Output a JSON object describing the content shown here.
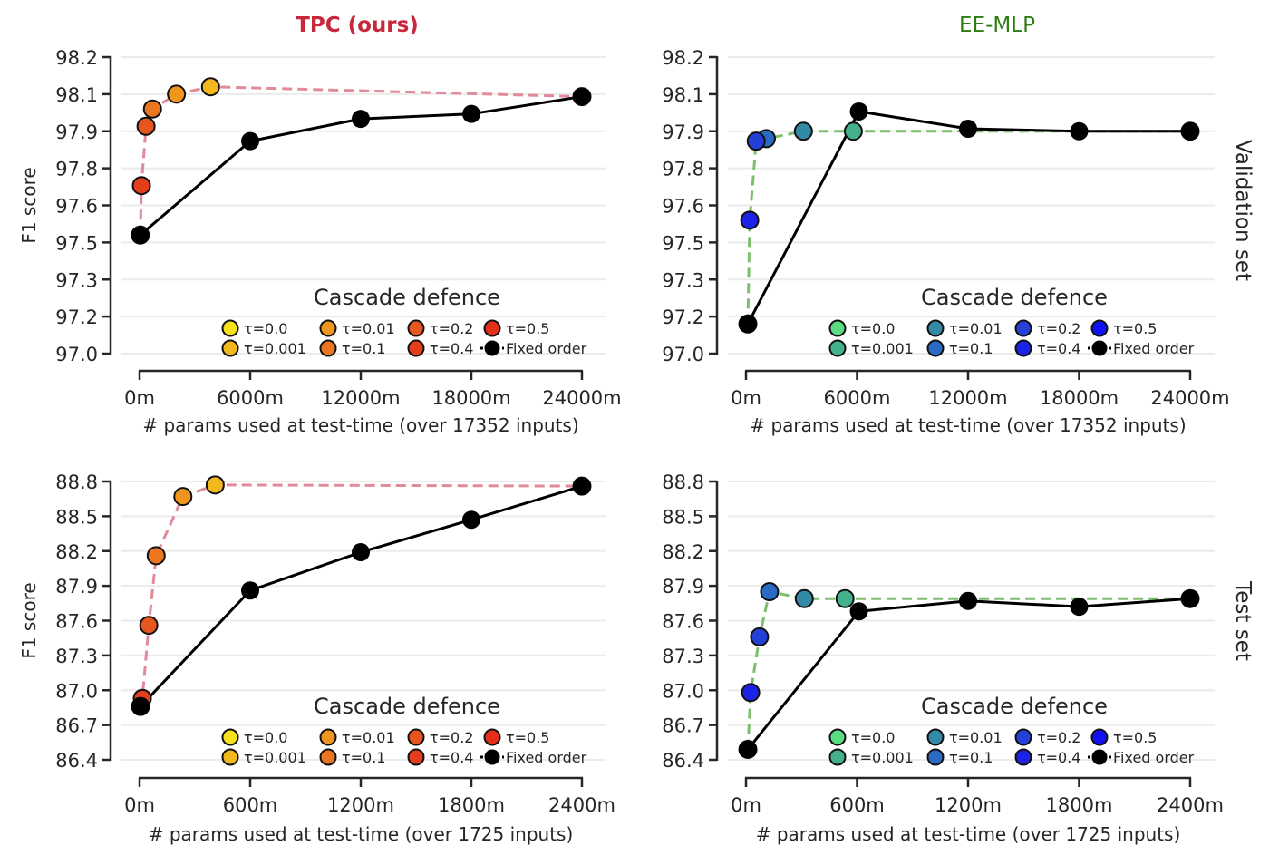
{
  "figure": {
    "column_titles": [
      {
        "text": "TPC (ours)",
        "color": "#C8283C",
        "bold": true
      },
      {
        "text": "EE-MLP",
        "color": "#2E7D12",
        "bold": false
      }
    ],
    "row_labels": [
      "Validation set",
      "Test set"
    ],
    "legend_title": "Cascade defence"
  },
  "chart_data": [
    {
      "id": "tpc-val",
      "type": "line",
      "title": "TPC (ours)",
      "row_label": "Validation set",
      "xlabel": "# params used at test-time (over 17352 inputs)",
      "ylabel": "F1 score",
      "xlim": [
        0,
        24000
      ],
      "ylim": [
        97.0,
        98.2
      ],
      "x_ticks": [
        0,
        6000,
        12000,
        18000,
        24000
      ],
      "x_tick_labels": [
        "0m",
        "6000m",
        "12000m",
        "18000m",
        "24000m"
      ],
      "y_ticks": [
        97.0,
        97.15,
        97.3,
        97.45,
        97.6,
        97.75,
        97.9,
        98.05,
        98.2
      ],
      "y_tick_labels": [
        "97.0",
        "97.2",
        "97.3",
        "97.5",
        "97.6",
        "97.8",
        "97.9",
        "98.1",
        "98.2"
      ],
      "grid": true,
      "legend": {
        "title": "Cascade defence",
        "placement": "lower-right",
        "columns": 4
      },
      "cascade": {
        "line_color": "#E08A9A",
        "points": [
          {
            "label": "τ=0.0",
            "x": 24000,
            "y": 98.04,
            "color": "#F8E21E"
          },
          {
            "label": "τ=0.001",
            "x": 3850,
            "y": 98.08,
            "color": "#F2B81E"
          },
          {
            "label": "τ=0.01",
            "x": 2000,
            "y": 98.05,
            "color": "#F0961E"
          },
          {
            "label": "τ=0.1",
            "x": 700,
            "y": 97.99,
            "color": "#EC7620"
          },
          {
            "label": "τ=0.2",
            "x": 350,
            "y": 97.92,
            "color": "#E85620"
          },
          {
            "label": "τ=0.4",
            "x": 100,
            "y": 97.68,
            "color": "#E63E1C"
          },
          {
            "label": "τ=0.5",
            "x": 40,
            "y": 97.48,
            "color": "#E4301A"
          }
        ]
      },
      "fixed_order": {
        "label": "Fixed order",
        "color": "#000000",
        "points": [
          {
            "x": 40,
            "y": 97.48
          },
          {
            "x": 6000,
            "y": 97.86
          },
          {
            "x": 12000,
            "y": 97.95
          },
          {
            "x": 18000,
            "y": 97.97
          },
          {
            "x": 24000,
            "y": 98.04
          }
        ]
      }
    },
    {
      "id": "eemlp-val",
      "type": "line",
      "title": "EE-MLP",
      "row_label": "Validation set",
      "xlabel": "# params used at test-time (over 17352 inputs)",
      "ylabel": "",
      "xlim": [
        0,
        24000
      ],
      "ylim": [
        97.0,
        98.2
      ],
      "x_ticks": [
        0,
        6000,
        12000,
        18000,
        24000
      ],
      "x_tick_labels": [
        "0m",
        "6000m",
        "12000m",
        "18000m",
        "24000m"
      ],
      "y_ticks": [
        97.0,
        97.15,
        97.3,
        97.45,
        97.6,
        97.75,
        97.9,
        98.05,
        98.2
      ],
      "y_tick_labels": [
        "97.0",
        "97.2",
        "97.3",
        "97.5",
        "97.6",
        "97.8",
        "97.9",
        "98.1",
        "98.2"
      ],
      "grid": true,
      "legend": {
        "title": "Cascade defence",
        "placement": "lower-right",
        "columns": 4
      },
      "cascade": {
        "line_color": "#7DBE6E",
        "points": [
          {
            "label": "τ=0.0",
            "x": 24000,
            "y": 97.9,
            "color": "#5ADC82"
          },
          {
            "label": "τ=0.001",
            "x": 5800,
            "y": 97.9,
            "color": "#44B08E"
          },
          {
            "label": "τ=0.01",
            "x": 3100,
            "y": 97.9,
            "color": "#338AA6"
          },
          {
            "label": "τ=0.1",
            "x": 1100,
            "y": 97.87,
            "color": "#2A6AC4"
          },
          {
            "label": "τ=0.2",
            "x": 550,
            "y": 97.86,
            "color": "#2440D8"
          },
          {
            "label": "τ=0.4",
            "x": 200,
            "y": 97.54,
            "color": "#1C22E8"
          },
          {
            "label": "τ=0.5",
            "x": 100,
            "y": 97.12,
            "color": "#1010F4"
          }
        ]
      },
      "fixed_order": {
        "label": "Fixed order",
        "color": "#000000",
        "points": [
          {
            "x": 100,
            "y": 97.12
          },
          {
            "x": 6100,
            "y": 97.98
          },
          {
            "x": 12000,
            "y": 97.91
          },
          {
            "x": 18000,
            "y": 97.9
          },
          {
            "x": 24000,
            "y": 97.9
          }
        ]
      }
    },
    {
      "id": "tpc-test",
      "type": "line",
      "title": "TPC (ours)",
      "row_label": "Test set",
      "xlabel": "# params used at test-time (over 1725 inputs)",
      "ylabel": "F1 score",
      "xlim": [
        0,
        2400
      ],
      "ylim": [
        86.4,
        88.8
      ],
      "x_ticks": [
        0,
        600,
        1200,
        1800,
        2400
      ],
      "x_tick_labels": [
        "0m",
        "600m",
        "1200m",
        "1800m",
        "2400m"
      ],
      "y_ticks": [
        86.4,
        86.7,
        87.0,
        87.3,
        87.6,
        87.9,
        88.2,
        88.5,
        88.8
      ],
      "y_tick_labels": [
        "86.4",
        "86.7",
        "87.0",
        "87.3",
        "87.6",
        "87.9",
        "88.2",
        "88.5",
        "88.8"
      ],
      "grid": true,
      "legend": {
        "title": "Cascade defence",
        "placement": "lower-right",
        "columns": 4
      },
      "cascade": {
        "line_color": "#E08A9A",
        "points": [
          {
            "label": "τ=0.0",
            "x": 2400,
            "y": 88.76,
            "color": "#F8E21E"
          },
          {
            "label": "τ=0.001",
            "x": 410,
            "y": 88.77,
            "color": "#F2B81E"
          },
          {
            "label": "τ=0.01",
            "x": 235,
            "y": 88.67,
            "color": "#F0961E"
          },
          {
            "label": "τ=0.1",
            "x": 90,
            "y": 88.16,
            "color": "#EC7620"
          },
          {
            "label": "τ=0.2",
            "x": 50,
            "y": 87.56,
            "color": "#E85620"
          },
          {
            "label": "τ=0.4",
            "x": 15,
            "y": 86.93,
            "color": "#E63E1C"
          },
          {
            "label": "τ=0.5",
            "x": 5,
            "y": 86.86,
            "color": "#E4301A"
          }
        ]
      },
      "fixed_order": {
        "label": "Fixed order",
        "color": "#000000",
        "points": [
          {
            "x": 5,
            "y": 86.86
          },
          {
            "x": 600,
            "y": 87.86
          },
          {
            "x": 1200,
            "y": 88.19
          },
          {
            "x": 1800,
            "y": 88.47
          },
          {
            "x": 2400,
            "y": 88.76
          }
        ]
      }
    },
    {
      "id": "eemlp-test",
      "type": "line",
      "title": "EE-MLP",
      "row_label": "Test set",
      "xlabel": "# params used at test-time (over 1725 inputs)",
      "ylabel": "",
      "xlim": [
        0,
        2400
      ],
      "ylim": [
        86.4,
        88.8
      ],
      "x_ticks": [
        0,
        600,
        1200,
        1800,
        2400
      ],
      "x_tick_labels": [
        "0m",
        "600m",
        "1200m",
        "1800m",
        "2400m"
      ],
      "y_ticks": [
        86.4,
        86.7,
        87.0,
        87.3,
        87.6,
        87.9,
        88.2,
        88.5,
        88.8
      ],
      "y_tick_labels": [
        "86.4",
        "86.7",
        "87.0",
        "87.3",
        "87.6",
        "87.9",
        "88.2",
        "88.5",
        "88.8"
      ],
      "grid": true,
      "legend": {
        "title": "Cascade defence",
        "placement": "lower-right",
        "columns": 4
      },
      "cascade": {
        "line_color": "#7DBE6E",
        "points": [
          {
            "label": "τ=0.0",
            "x": 2400,
            "y": 87.79,
            "color": "#5ADC82"
          },
          {
            "label": "τ=0.001",
            "x": 535,
            "y": 87.79,
            "color": "#44B08E"
          },
          {
            "label": "τ=0.01",
            "x": 315,
            "y": 87.79,
            "color": "#338AA6"
          },
          {
            "label": "τ=0.1",
            "x": 127,
            "y": 87.85,
            "color": "#2A6AC4"
          },
          {
            "label": "τ=0.2",
            "x": 73,
            "y": 87.46,
            "color": "#2440D8"
          },
          {
            "label": "τ=0.4",
            "x": 25,
            "y": 86.98,
            "color": "#1C22E8"
          },
          {
            "label": "τ=0.5",
            "x": 10,
            "y": 86.49,
            "color": "#1010F4"
          }
        ]
      },
      "fixed_order": {
        "label": "Fixed order",
        "color": "#000000",
        "points": [
          {
            "x": 10,
            "y": 86.49
          },
          {
            "x": 610,
            "y": 87.68
          },
          {
            "x": 1200,
            "y": 87.77
          },
          {
            "x": 1800,
            "y": 87.72
          },
          {
            "x": 2400,
            "y": 87.79
          }
        ]
      }
    }
  ]
}
